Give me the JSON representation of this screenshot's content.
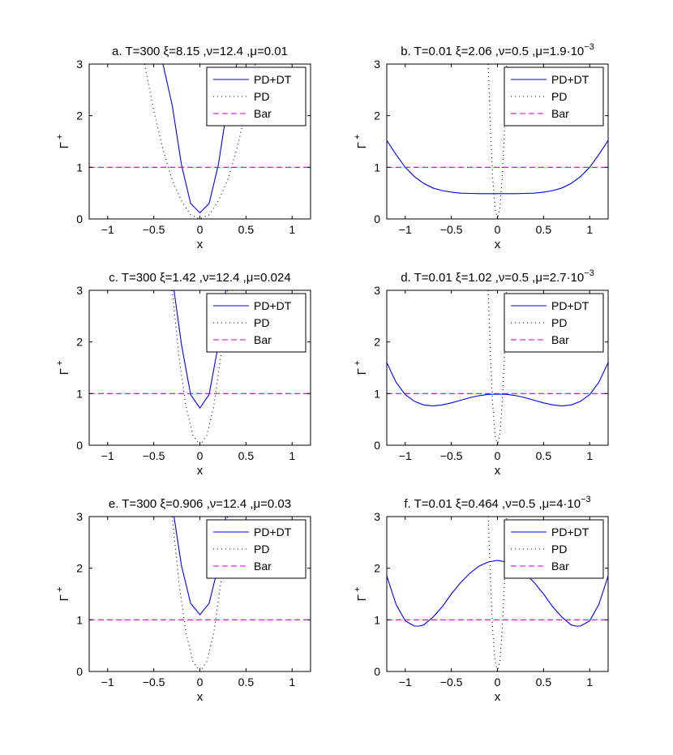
{
  "figure": {
    "legend_position": "top-right",
    "ylabel": "Γ",
    "ylabel_sup": "+",
    "xlabel": "x",
    "x_ticks": [
      "−1",
      "−0.5",
      "0",
      "0.5",
      "1"
    ],
    "y_ticks": [
      "0",
      "1",
      "2",
      "3"
    ]
  },
  "chart_data": [
    {
      "type": "line",
      "title": "a. T=300 ξ=8.15 ,ν=12.4 ,μ=0.01",
      "xlabel": "x",
      "ylabel": "Γ+",
      "xlim": [
        -1.2,
        1.2
      ],
      "ylim": [
        0,
        3
      ],
      "x_ticks": [
        -1,
        -0.5,
        0,
        0.5,
        1
      ],
      "y_ticks": [
        0,
        1,
        2,
        3
      ],
      "legend": "top-right",
      "series": [
        {
          "name": "PD+DT",
          "color": "#0000ff",
          "style": "solid",
          "x": [
            -0.4,
            -0.3,
            -0.2,
            -0.1,
            0,
            0.1,
            0.2,
            0.3,
            0.4
          ],
          "y": [
            3.0,
            2.2,
            1.05,
            0.3,
            0.12,
            0.3,
            1.05,
            2.2,
            3.0
          ]
        },
        {
          "name": "PD",
          "color": "#000000",
          "style": "dotted",
          "x": [
            -0.6,
            -0.5,
            -0.4,
            -0.3,
            -0.2,
            -0.1,
            0,
            0.1,
            0.2,
            0.3,
            0.4,
            0.5,
            0.6
          ],
          "y": [
            3.0,
            2.1,
            1.35,
            0.75,
            0.35,
            0.08,
            0,
            0.08,
            0.35,
            0.75,
            1.35,
            2.1,
            3.0
          ]
        },
        {
          "name": "Bar",
          "color": "#cc00cc",
          "style": "dashed",
          "x": [
            -1.2,
            1.2
          ],
          "y": [
            1,
            1
          ]
        }
      ]
    },
    {
      "type": "line",
      "title": "b. T=0.01 ξ=2.06 ,ν=0.5 ,μ=1.9·10",
      "title_exp": "−3",
      "xlabel": "x",
      "ylabel": "Γ+",
      "xlim": [
        -1.2,
        1.2
      ],
      "ylim": [
        0,
        3
      ],
      "x_ticks": [
        -1,
        -0.5,
        0,
        0.5,
        1
      ],
      "y_ticks": [
        0,
        1,
        2,
        3
      ],
      "legend": "top-right",
      "series": [
        {
          "name": "PD+DT",
          "color": "#0000ff",
          "style": "solid",
          "x": [
            -1.2,
            -1.1,
            -1.0,
            -0.9,
            -0.8,
            -0.7,
            -0.6,
            -0.5,
            -0.4,
            -0.3,
            -0.2,
            0,
            0.2,
            0.3,
            0.4,
            0.5,
            0.6,
            0.7,
            0.8,
            0.9,
            1.0,
            1.1,
            1.2
          ],
          "y": [
            1.52,
            1.25,
            1.0,
            0.82,
            0.69,
            0.6,
            0.55,
            0.52,
            0.5,
            0.495,
            0.49,
            0.49,
            0.49,
            0.495,
            0.5,
            0.52,
            0.55,
            0.6,
            0.69,
            0.82,
            1.0,
            1.25,
            1.52
          ]
        },
        {
          "name": "PD",
          "color": "#000000",
          "style": "dotted",
          "x": [
            -0.1,
            -0.075,
            -0.05,
            -0.025,
            0,
            0.025,
            0.05,
            0.075,
            0.1
          ],
          "y": [
            3.0,
            1.69,
            0.75,
            0.19,
            0,
            0.19,
            0.75,
            1.69,
            3.0
          ]
        },
        {
          "name": "Bar",
          "color": "#cc00cc",
          "style": "dashed",
          "x": [
            -1.2,
            1.2
          ],
          "y": [
            1,
            1
          ]
        }
      ]
    },
    {
      "type": "line",
      "title": "c. T=300 ξ=1.42 ,ν=12.4 ,μ=0.024",
      "xlabel": "x",
      "ylabel": "Γ+",
      "xlim": [
        -1.2,
        1.2
      ],
      "ylim": [
        0,
        3
      ],
      "x_ticks": [
        -1,
        -0.5,
        0,
        0.5,
        1
      ],
      "y_ticks": [
        0,
        1,
        2,
        3
      ],
      "legend": "top-right",
      "series": [
        {
          "name": "PD+DT",
          "color": "#0000ff",
          "style": "solid",
          "x": [
            -0.28,
            -0.2,
            -0.1,
            0,
            0.1,
            0.2,
            0.28
          ],
          "y": [
            3.0,
            1.95,
            0.98,
            0.72,
            0.98,
            1.95,
            3.0
          ]
        },
        {
          "name": "PD",
          "color": "#000000",
          "style": "dotted",
          "x": [
            -0.3,
            -0.225,
            -0.15,
            -0.075,
            0,
            0.075,
            0.15,
            0.225,
            0.3
          ],
          "y": [
            3.0,
            1.69,
            0.75,
            0.19,
            0,
            0.19,
            0.75,
            1.69,
            3.0
          ]
        },
        {
          "name": "Bar",
          "color": "#cc00cc",
          "style": "dashed",
          "x": [
            -1.2,
            1.2
          ],
          "y": [
            1,
            1
          ]
        }
      ]
    },
    {
      "type": "line",
      "title": "d. T=0.01 ξ=1.02 ,ν=0.5 ,μ=2.7·10",
      "title_exp": "−3",
      "xlabel": "x",
      "ylabel": "Γ+",
      "xlim": [
        -1.2,
        1.2
      ],
      "ylim": [
        0,
        3
      ],
      "x_ticks": [
        -1,
        -0.5,
        0,
        0.5,
        1
      ],
      "y_ticks": [
        0,
        1,
        2,
        3
      ],
      "legend": "top-right",
      "series": [
        {
          "name": "PD+DT",
          "color": "#0000ff",
          "style": "solid",
          "x": [
            -1.2,
            -1.1,
            -1.0,
            -0.9,
            -0.8,
            -0.7,
            -0.6,
            -0.5,
            -0.4,
            -0.3,
            -0.2,
            -0.1,
            0,
            0.1,
            0.2,
            0.3,
            0.4,
            0.5,
            0.6,
            0.7,
            0.8,
            0.9,
            1.0,
            1.1,
            1.2
          ],
          "y": [
            1.6,
            1.22,
            0.98,
            0.85,
            0.78,
            0.76,
            0.78,
            0.82,
            0.87,
            0.92,
            0.96,
            0.985,
            0.99,
            0.985,
            0.96,
            0.92,
            0.87,
            0.82,
            0.78,
            0.76,
            0.78,
            0.85,
            0.98,
            1.22,
            1.6
          ]
        },
        {
          "name": "PD",
          "color": "#000000",
          "style": "dotted",
          "x": [
            -0.1,
            -0.075,
            -0.05,
            -0.025,
            0,
            0.025,
            0.05,
            0.075,
            0.1
          ],
          "y": [
            3.0,
            1.69,
            0.75,
            0.19,
            0,
            0.19,
            0.75,
            1.69,
            3.0
          ]
        },
        {
          "name": "Bar",
          "color": "#cc00cc",
          "style": "dashed",
          "x": [
            -1.2,
            1.2
          ],
          "y": [
            1,
            1
          ]
        }
      ]
    },
    {
      "type": "line",
      "title": "e. T=300 ξ=0.906 ,ν=12.4 ,μ=0.03",
      "xlabel": "x",
      "ylabel": "Γ+",
      "xlim": [
        -1.2,
        1.2
      ],
      "ylim": [
        0,
        3
      ],
      "x_ticks": [
        -1,
        -0.5,
        0,
        0.5,
        1
      ],
      "y_ticks": [
        0,
        1,
        2,
        3
      ],
      "legend": "top-right",
      "series": [
        {
          "name": "PD+DT",
          "color": "#0000ff",
          "style": "solid",
          "x": [
            -0.28,
            -0.2,
            -0.1,
            0,
            0.1,
            0.2,
            0.28
          ],
          "y": [
            3.0,
            2.05,
            1.32,
            1.1,
            1.32,
            2.05,
            3.0
          ]
        },
        {
          "name": "PD",
          "color": "#000000",
          "style": "dotted",
          "x": [
            -0.3,
            -0.225,
            -0.15,
            -0.075,
            0,
            0.075,
            0.15,
            0.225,
            0.3
          ],
          "y": [
            3.0,
            1.69,
            0.75,
            0.19,
            0,
            0.19,
            0.75,
            1.69,
            3.0
          ]
        },
        {
          "name": "Bar",
          "color": "#cc00cc",
          "style": "dashed",
          "x": [
            -1.2,
            1.2
          ],
          "y": [
            1,
            1
          ]
        }
      ]
    },
    {
      "type": "line",
      "title": "f. T=0.01 ξ=0.464 ,ν=0.5 ,μ=4·10",
      "title_exp": "−3",
      "xlabel": "x",
      "ylabel": "Γ+",
      "xlim": [
        -1.2,
        1.2
      ],
      "ylim": [
        0,
        3
      ],
      "x_ticks": [
        -1,
        -0.5,
        0,
        0.5,
        1
      ],
      "y_ticks": [
        0,
        1,
        2,
        3
      ],
      "legend": "top-right",
      "series": [
        {
          "name": "PD+DT",
          "color": "#0000ff",
          "style": "solid",
          "x": [
            -1.2,
            -1.1,
            -1.0,
            -0.9,
            -0.85,
            -0.8,
            -0.7,
            -0.6,
            -0.5,
            -0.4,
            -0.3,
            -0.2,
            -0.1,
            0,
            0.1,
            0.2,
            0.3,
            0.4,
            0.5,
            0.6,
            0.7,
            0.8,
            0.85,
            0.9,
            1.0,
            1.1,
            1.2
          ],
          "y": [
            1.85,
            1.3,
            0.98,
            0.88,
            0.88,
            0.9,
            1.05,
            1.25,
            1.5,
            1.72,
            1.9,
            2.04,
            2.12,
            2.15,
            2.12,
            2.04,
            1.9,
            1.72,
            1.5,
            1.25,
            1.05,
            0.9,
            0.88,
            0.88,
            0.98,
            1.3,
            1.85
          ]
        },
        {
          "name": "PD",
          "color": "#000000",
          "style": "dotted",
          "x": [
            -0.1,
            -0.075,
            -0.05,
            -0.025,
            0,
            0.025,
            0.05,
            0.075,
            0.1
          ],
          "y": [
            3.0,
            1.69,
            0.75,
            0.19,
            0,
            0.19,
            0.75,
            1.69,
            3.0
          ]
        },
        {
          "name": "Bar",
          "color": "#cc00cc",
          "style": "dashed",
          "x": [
            -1.2,
            1.2
          ],
          "y": [
            1,
            1
          ]
        }
      ]
    }
  ]
}
